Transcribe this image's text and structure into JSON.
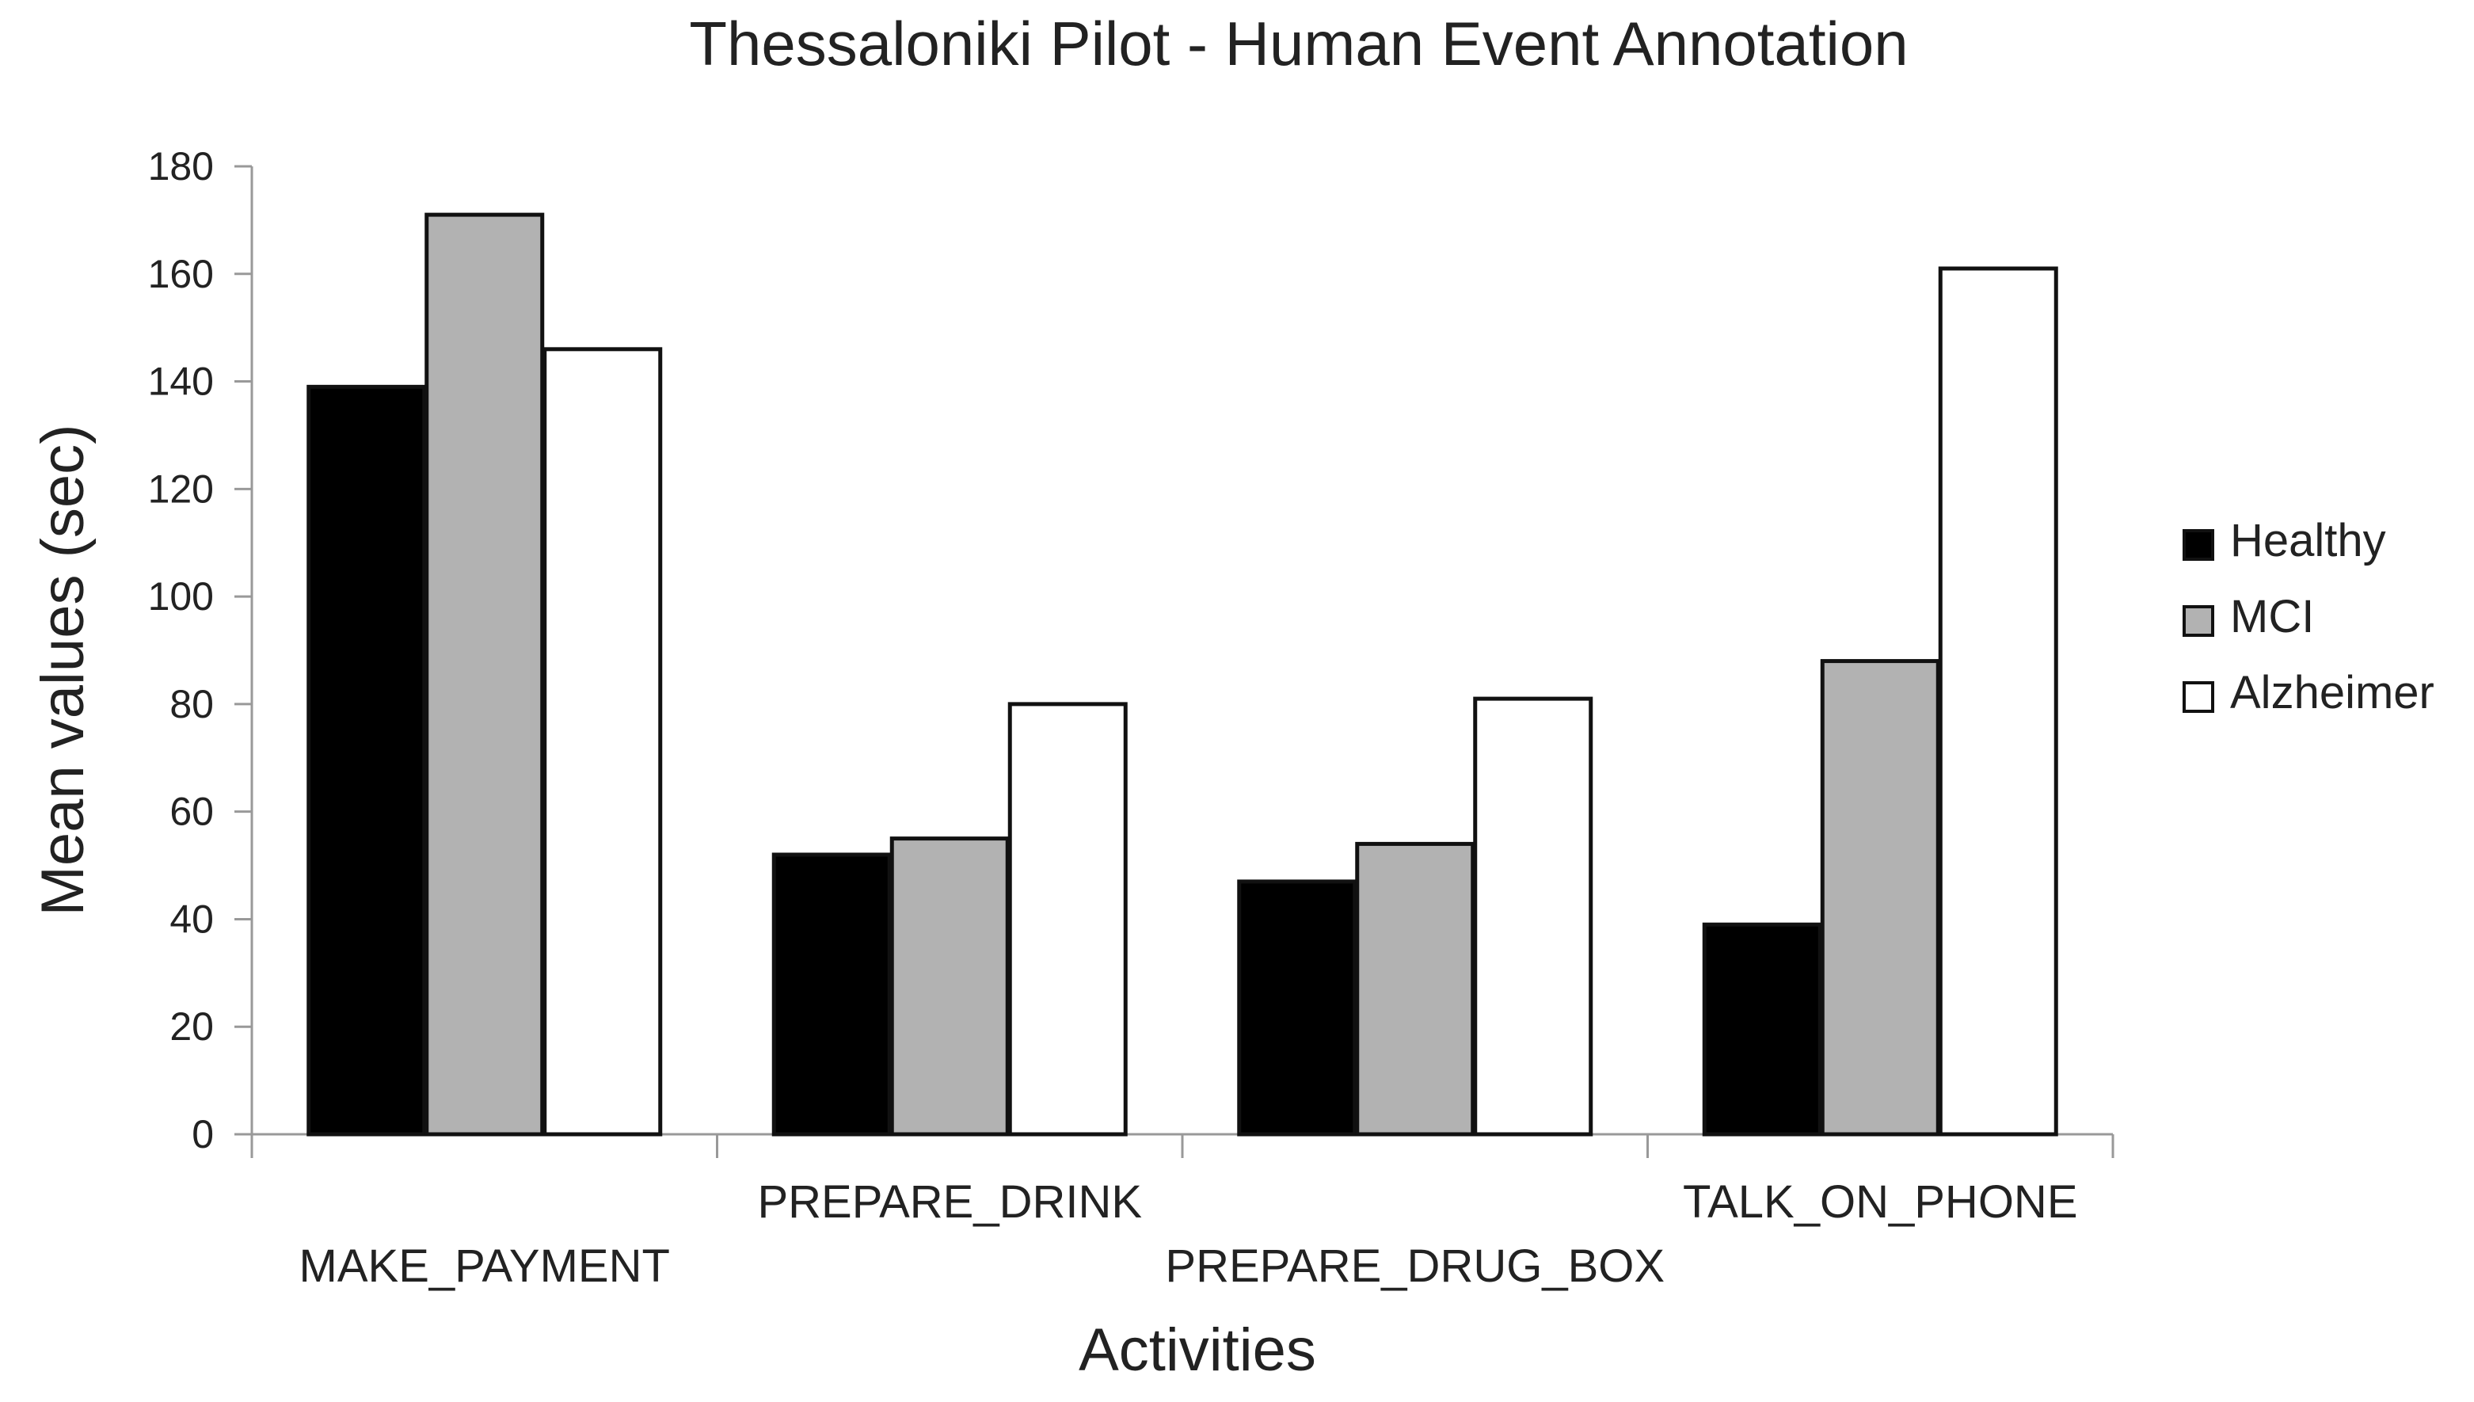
{
  "chart_data": {
    "type": "bar",
    "title": "Thessaloniki Pilot - Human Event Annotation",
    "xlabel": "Activities",
    "ylabel": "Mean values (sec)",
    "ylim": [
      0,
      180
    ],
    "yticks": [
      0,
      20,
      40,
      60,
      80,
      100,
      120,
      140,
      160,
      180
    ],
    "categories": [
      "MAKE_PAYMENT",
      "PREPARE_DRINK",
      "PREPARE_DRUG_BOX",
      "TALK_ON_PHONE"
    ],
    "series": [
      {
        "name": "Healthy",
        "color": "#000000",
        "values": [
          139,
          52,
          47,
          39
        ]
      },
      {
        "name": "MCI",
        "color": "#b2b2b2",
        "values": [
          171,
          55,
          54,
          88
        ]
      },
      {
        "name": "Alzheimer",
        "color": "#ffffff",
        "values": [
          146,
          80,
          81,
          161
        ]
      }
    ],
    "legend_position": "right",
    "grid": false
  }
}
